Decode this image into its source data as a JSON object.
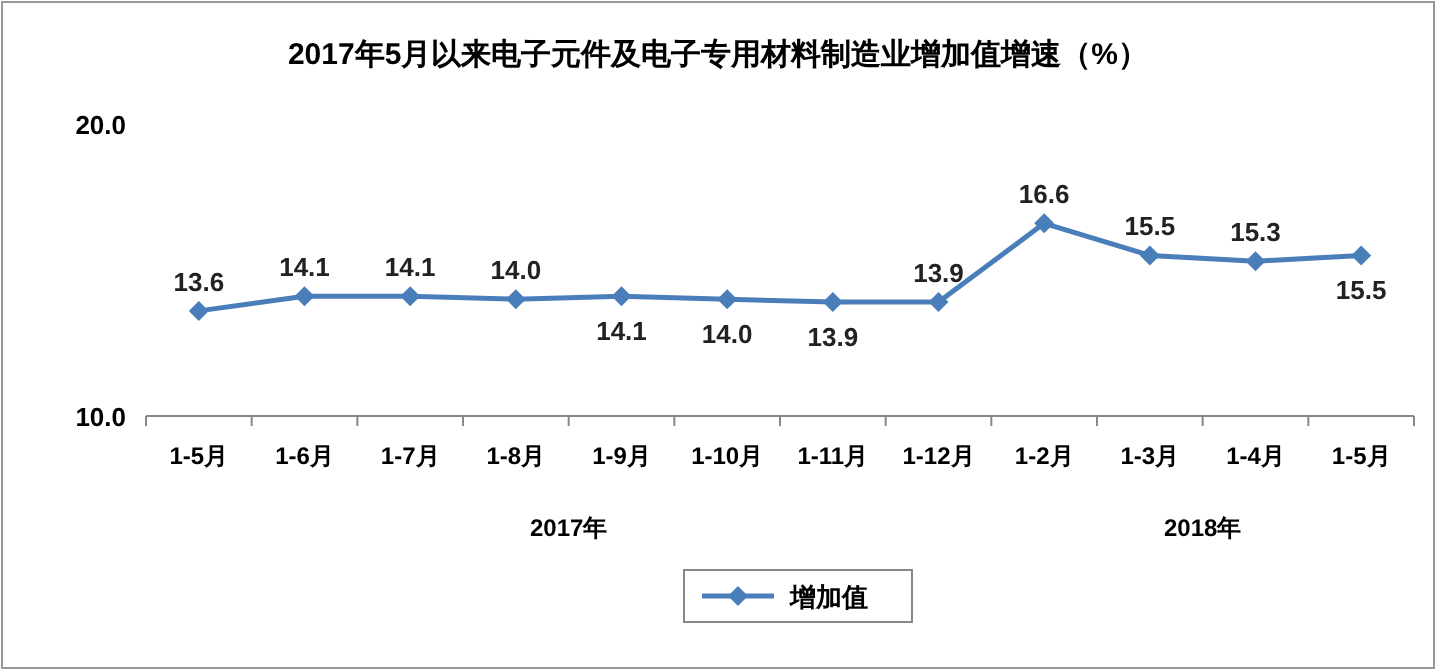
{
  "chart_data": {
    "type": "line",
    "title": "2017年5月以来电子元件及电子专用材料制造业增加值增速（%）",
    "categories": [
      "1-5月",
      "1-6月",
      "1-7月",
      "1-8月",
      "1-9月",
      "1-10月",
      "1-11月",
      "1-12月",
      "1-2月",
      "1-3月",
      "1-4月",
      "1-5月"
    ],
    "series": [
      {
        "name": "增加值",
        "color": "#4a7ebb",
        "values": [
          13.6,
          14.1,
          14.1,
          14.0,
          14.1,
          14.0,
          13.9,
          13.9,
          16.6,
          15.5,
          15.3,
          15.5
        ],
        "value_labels": [
          "13.6",
          "14.1",
          "14.1",
          "14.0",
          "14.1",
          "14.0",
          "13.9",
          "13.9",
          "16.6",
          "15.5",
          "15.3",
          "15.5"
        ]
      }
    ],
    "ylim": [
      10,
      20
    ],
    "yticks": [
      {
        "value": 10,
        "label": "10.0"
      },
      {
        "value": 20,
        "label": "20.0"
      }
    ],
    "annotations": [
      "2017年",
      "2018年"
    ],
    "grid": false,
    "legend": "bottom",
    "marker": "diamond",
    "line_style": "solid"
  }
}
